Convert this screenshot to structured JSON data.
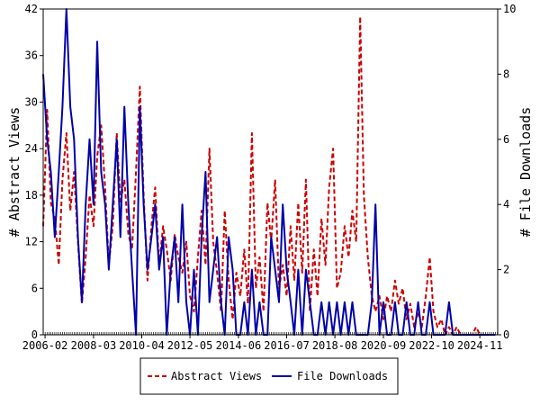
{
  "chart_data": {
    "type": "line",
    "ylabel_left": "# Abstract Views",
    "ylabel_right": "# File Downloads",
    "ylim_left": [
      0,
      42
    ],
    "ylim_right": [
      0,
      10
    ],
    "yticks_left": [
      "0",
      "6",
      "12",
      "18",
      "24",
      "30",
      "36",
      "42"
    ],
    "yticks_right": [
      "0",
      "2",
      "4",
      "6",
      "8",
      "10"
    ],
    "xlim": [
      2006.0,
      2025.6
    ],
    "xticks": [
      {
        "label": "2006-02",
        "x": 2006.08
      },
      {
        "label": "2008-03",
        "x": 2008.17
      },
      {
        "label": "2010-04",
        "x": 2010.25
      },
      {
        "label": "2012-05",
        "x": 2012.33
      },
      {
        "label": "2014-06",
        "x": 2014.42
      },
      {
        "label": "2016-07",
        "x": 2016.5
      },
      {
        "label": "2018-08",
        "x": 2018.58
      },
      {
        "label": "2020-09",
        "x": 2020.67
      },
      {
        "label": "2022-10",
        "x": 2022.75
      },
      {
        "label": "2024-11",
        "x": 2024.83
      }
    ],
    "legend": {
      "placement": "bottom-center"
    },
    "series": [
      {
        "name": "Abstract Views",
        "color": "#cc0000",
        "style": "dashed",
        "axis": "left",
        "points": [
          [
            2006.0,
            14
          ],
          [
            2006.17,
            29
          ],
          [
            2006.33,
            17
          ],
          [
            2006.5,
            15
          ],
          [
            2006.67,
            9
          ],
          [
            2006.83,
            20
          ],
          [
            2007.0,
            26
          ],
          [
            2007.17,
            16
          ],
          [
            2007.33,
            21
          ],
          [
            2007.5,
            12
          ],
          [
            2007.67,
            4
          ],
          [
            2007.83,
            10
          ],
          [
            2008.0,
            18
          ],
          [
            2008.17,
            14
          ],
          [
            2008.33,
            23
          ],
          [
            2008.5,
            27
          ],
          [
            2008.67,
            19
          ],
          [
            2008.83,
            9
          ],
          [
            2009.0,
            14
          ],
          [
            2009.17,
            26
          ],
          [
            2009.33,
            17
          ],
          [
            2009.5,
            20
          ],
          [
            2009.67,
            13
          ],
          [
            2009.83,
            11
          ],
          [
            2010.0,
            21
          ],
          [
            2010.17,
            32
          ],
          [
            2010.33,
            18
          ],
          [
            2010.5,
            7
          ],
          [
            2010.67,
            14
          ],
          [
            2010.83,
            19
          ],
          [
            2011.0,
            9
          ],
          [
            2011.17,
            14
          ],
          [
            2011.33,
            11
          ],
          [
            2011.5,
            7
          ],
          [
            2011.67,
            13
          ],
          [
            2011.83,
            10
          ],
          [
            2012.0,
            8
          ],
          [
            2012.17,
            12
          ],
          [
            2012.33,
            5
          ],
          [
            2012.5,
            3
          ],
          [
            2012.67,
            10
          ],
          [
            2012.83,
            16
          ],
          [
            2013.0,
            9
          ],
          [
            2013.17,
            24
          ],
          [
            2013.33,
            12
          ],
          [
            2013.5,
            8
          ],
          [
            2013.67,
            3
          ],
          [
            2013.83,
            16
          ],
          [
            2014.0,
            7
          ],
          [
            2014.17,
            2
          ],
          [
            2014.33,
            8
          ],
          [
            2014.5,
            5
          ],
          [
            2014.67,
            11
          ],
          [
            2014.83,
            4
          ],
          [
            2015.0,
            26
          ],
          [
            2015.17,
            6
          ],
          [
            2015.33,
            10
          ],
          [
            2015.5,
            3
          ],
          [
            2015.67,
            17
          ],
          [
            2015.83,
            12
          ],
          [
            2016.0,
            20
          ],
          [
            2016.17,
            6
          ],
          [
            2016.33,
            9
          ],
          [
            2016.5,
            5
          ],
          [
            2016.67,
            14
          ],
          [
            2016.83,
            7
          ],
          [
            2017.0,
            17
          ],
          [
            2017.17,
            8
          ],
          [
            2017.33,
            20
          ],
          [
            2017.5,
            3
          ],
          [
            2017.67,
            11
          ],
          [
            2017.83,
            5
          ],
          [
            2018.0,
            15
          ],
          [
            2018.17,
            9
          ],
          [
            2018.33,
            19
          ],
          [
            2018.5,
            24
          ],
          [
            2018.67,
            6
          ],
          [
            2018.83,
            8
          ],
          [
            2019.0,
            14
          ],
          [
            2019.17,
            10
          ],
          [
            2019.33,
            16
          ],
          [
            2019.5,
            12
          ],
          [
            2019.67,
            41
          ],
          [
            2019.83,
            18
          ],
          [
            2020.0,
            10
          ],
          [
            2020.17,
            5
          ],
          [
            2020.33,
            3
          ],
          [
            2020.5,
            5
          ],
          [
            2020.67,
            2
          ],
          [
            2020.83,
            5
          ],
          [
            2021.0,
            3
          ],
          [
            2021.17,
            7
          ],
          [
            2021.33,
            4
          ],
          [
            2021.5,
            6
          ],
          [
            2021.67,
            2
          ],
          [
            2021.83,
            4
          ],
          [
            2022.0,
            1
          ],
          [
            2022.17,
            3
          ],
          [
            2022.33,
            1
          ],
          [
            2022.5,
            5
          ],
          [
            2022.67,
            10
          ],
          [
            2022.83,
            3
          ],
          [
            2023.0,
            1
          ],
          [
            2023.17,
            2
          ],
          [
            2023.33,
            0
          ],
          [
            2023.5,
            1
          ],
          [
            2023.67,
            0
          ],
          [
            2023.83,
            1
          ],
          [
            2024.0,
            0
          ],
          [
            2024.17,
            0
          ],
          [
            2024.33,
            0
          ],
          [
            2024.5,
            0
          ],
          [
            2024.67,
            1
          ],
          [
            2024.83,
            0
          ],
          [
            2025.0,
            0
          ],
          [
            2025.17,
            0
          ],
          [
            2025.33,
            0
          ],
          [
            2025.5,
            0
          ]
        ]
      },
      {
        "name": "File Downloads",
        "color": "#0000aa",
        "style": "solid",
        "axis": "right",
        "points": [
          [
            2006.0,
            8
          ],
          [
            2006.17,
            6
          ],
          [
            2006.33,
            5
          ],
          [
            2006.5,
            3
          ],
          [
            2006.67,
            5
          ],
          [
            2006.83,
            7
          ],
          [
            2007.0,
            10
          ],
          [
            2007.17,
            7
          ],
          [
            2007.33,
            6
          ],
          [
            2007.5,
            3
          ],
          [
            2007.67,
            1
          ],
          [
            2007.83,
            4
          ],
          [
            2008.0,
            6
          ],
          [
            2008.17,
            4
          ],
          [
            2008.33,
            9
          ],
          [
            2008.5,
            5
          ],
          [
            2008.67,
            4
          ],
          [
            2008.83,
            2
          ],
          [
            2009.0,
            4
          ],
          [
            2009.17,
            6
          ],
          [
            2009.33,
            3
          ],
          [
            2009.5,
            7
          ],
          [
            2009.67,
            4
          ],
          [
            2009.83,
            2
          ],
          [
            2010.0,
            0
          ],
          [
            2010.17,
            7
          ],
          [
            2010.33,
            4
          ],
          [
            2010.5,
            2
          ],
          [
            2010.67,
            3
          ],
          [
            2010.83,
            4
          ],
          [
            2011.0,
            2
          ],
          [
            2011.17,
            3
          ],
          [
            2011.33,
            0
          ],
          [
            2011.5,
            2
          ],
          [
            2011.67,
            3
          ],
          [
            2011.83,
            1
          ],
          [
            2012.0,
            4
          ],
          [
            2012.17,
            1
          ],
          [
            2012.33,
            0
          ],
          [
            2012.5,
            2
          ],
          [
            2012.67,
            0
          ],
          [
            2012.83,
            3
          ],
          [
            2013.0,
            5
          ],
          [
            2013.17,
            1
          ],
          [
            2013.33,
            2
          ],
          [
            2013.5,
            3
          ],
          [
            2013.67,
            1
          ],
          [
            2013.83,
            0
          ],
          [
            2014.0,
            3
          ],
          [
            2014.17,
            2
          ],
          [
            2014.33,
            0
          ],
          [
            2014.5,
            0
          ],
          [
            2014.67,
            1
          ],
          [
            2014.83,
            0
          ],
          [
            2015.0,
            2
          ],
          [
            2015.17,
            0
          ],
          [
            2015.33,
            1
          ],
          [
            2015.5,
            0
          ],
          [
            2015.67,
            0
          ],
          [
            2015.83,
            3
          ],
          [
            2016.0,
            2
          ],
          [
            2016.17,
            1
          ],
          [
            2016.33,
            4
          ],
          [
            2016.5,
            2
          ],
          [
            2016.67,
            1
          ],
          [
            2016.83,
            0
          ],
          [
            2017.0,
            2
          ],
          [
            2017.17,
            0
          ],
          [
            2017.33,
            2
          ],
          [
            2017.5,
            1
          ],
          [
            2017.67,
            0
          ],
          [
            2017.83,
            0
          ],
          [
            2018.0,
            1
          ],
          [
            2018.17,
            0
          ],
          [
            2018.33,
            1
          ],
          [
            2018.5,
            0
          ],
          [
            2018.67,
            1
          ],
          [
            2018.83,
            0
          ],
          [
            2019.0,
            1
          ],
          [
            2019.17,
            0
          ],
          [
            2019.33,
            1
          ],
          [
            2019.5,
            0
          ],
          [
            2019.67,
            0
          ],
          [
            2019.83,
            0
          ],
          [
            2020.0,
            0
          ],
          [
            2020.17,
            1
          ],
          [
            2020.33,
            4
          ],
          [
            2020.5,
            0
          ],
          [
            2020.67,
            1
          ],
          [
            2020.83,
            0
          ],
          [
            2021.0,
            0
          ],
          [
            2021.17,
            1
          ],
          [
            2021.33,
            0
          ],
          [
            2021.5,
            0
          ],
          [
            2021.67,
            1
          ],
          [
            2021.83,
            0
          ],
          [
            2022.0,
            0
          ],
          [
            2022.17,
            1
          ],
          [
            2022.33,
            0
          ],
          [
            2022.5,
            0
          ],
          [
            2022.67,
            1
          ],
          [
            2022.83,
            0
          ],
          [
            2023.0,
            0
          ],
          [
            2023.17,
            0
          ],
          [
            2023.33,
            0
          ],
          [
            2023.5,
            1
          ],
          [
            2023.67,
            0
          ],
          [
            2023.83,
            0
          ],
          [
            2024.0,
            0
          ],
          [
            2024.17,
            0
          ],
          [
            2024.33,
            0
          ],
          [
            2024.5,
            0
          ],
          [
            2024.67,
            0
          ],
          [
            2024.83,
            0
          ],
          [
            2025.0,
            0
          ],
          [
            2025.17,
            0
          ],
          [
            2025.33,
            0
          ],
          [
            2025.5,
            0
          ]
        ]
      }
    ]
  }
}
